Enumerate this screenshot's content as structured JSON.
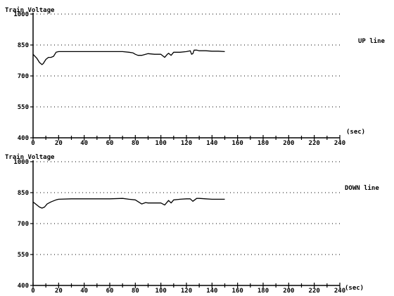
{
  "chart_data": [
    {
      "type": "line",
      "title": "Train Voltage",
      "series_label": "UP line",
      "xunit": "(sec)",
      "xlim": [
        0,
        240
      ],
      "ylim": [
        400,
        1000
      ],
      "xticks": [
        0,
        20,
        40,
        60,
        80,
        100,
        120,
        140,
        160,
        180,
        200,
        220,
        240
      ],
      "yticks": [
        400,
        550,
        700,
        850,
        1000
      ],
      "grid": "dotted-horizontal",
      "series": [
        {
          "x": [
            0,
            3,
            5,
            7,
            8,
            10,
            12,
            14,
            16,
            18,
            20,
            30,
            40,
            50,
            60,
            70,
            75,
            78,
            80,
            82,
            85,
            90,
            95,
            100,
            103,
            105,
            106,
            108,
            110,
            115,
            120,
            123,
            124,
            125,
            126,
            128,
            130,
            135,
            140,
            145,
            150
          ],
          "y": [
            805,
            785,
            765,
            755,
            760,
            780,
            790,
            790,
            795,
            815,
            818,
            818,
            818,
            818,
            818,
            818,
            815,
            812,
            805,
            800,
            800,
            808,
            805,
            805,
            790,
            805,
            810,
            800,
            815,
            815,
            818,
            822,
            805,
            808,
            825,
            825,
            822,
            822,
            820,
            820,
            818
          ]
        }
      ]
    },
    {
      "type": "line",
      "title": "Train Voltage",
      "series_label": "DOWN line",
      "xunit": "(sec)",
      "xlim": [
        0,
        240
      ],
      "ylim": [
        400,
        1000
      ],
      "xticks": [
        0,
        20,
        40,
        60,
        80,
        100,
        120,
        140,
        160,
        180,
        200,
        220,
        240
      ],
      "yticks": [
        400,
        550,
        700,
        850,
        1000
      ],
      "grid": "dotted-horizontal",
      "series": [
        {
          "x": [
            0,
            3,
            5,
            7,
            9,
            11,
            14,
            16,
            18,
            20,
            30,
            40,
            50,
            60,
            70,
            75,
            80,
            85,
            88,
            90,
            95,
            100,
            103,
            105,
            106,
            108,
            110,
            115,
            120,
            123,
            125,
            128,
            130,
            135,
            140,
            145,
            150
          ],
          "y": [
            805,
            790,
            780,
            775,
            780,
            795,
            805,
            810,
            815,
            818,
            820,
            820,
            820,
            820,
            822,
            818,
            815,
            795,
            802,
            800,
            800,
            800,
            790,
            805,
            812,
            800,
            815,
            818,
            820,
            820,
            808,
            822,
            822,
            820,
            818,
            818,
            818
          ]
        }
      ]
    }
  ]
}
